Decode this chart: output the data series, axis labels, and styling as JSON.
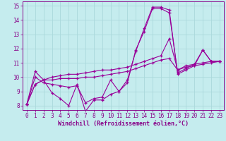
{
  "xlabel": "Windchill (Refroidissement éolien,°C)",
  "background_color": "#c5ecee",
  "grid_color": "#aad8dc",
  "line_color": "#990099",
  "xlim": [
    -0.5,
    23.5
  ],
  "ylim": [
    7.7,
    15.3
  ],
  "yticks": [
    8,
    9,
    10,
    11,
    12,
    13,
    14,
    15
  ],
  "xticks": [
    0,
    1,
    2,
    3,
    4,
    5,
    6,
    7,
    8,
    9,
    10,
    11,
    12,
    13,
    14,
    15,
    16,
    17,
    18,
    19,
    20,
    21,
    22,
    23
  ],
  "series": [
    [
      8.1,
      10.4,
      9.8,
      8.9,
      8.5,
      8.0,
      9.5,
      7.6,
      8.4,
      8.4,
      8.8,
      9.0,
      9.8,
      11.8,
      13.4,
      14.9,
      14.9,
      14.7,
      10.2,
      10.5,
      10.8,
      11.9,
      11.1,
      11.1
    ],
    [
      8.1,
      9.5,
      9.8,
      10.0,
      10.1,
      10.2,
      10.2,
      10.3,
      10.4,
      10.5,
      10.5,
      10.6,
      10.7,
      10.9,
      11.1,
      11.3,
      11.5,
      12.7,
      10.5,
      10.8,
      10.9,
      11.0,
      11.1,
      11.1
    ],
    [
      8.1,
      9.5,
      9.8,
      9.8,
      9.9,
      9.9,
      9.9,
      10.0,
      10.0,
      10.1,
      10.2,
      10.3,
      10.4,
      10.6,
      10.8,
      11.0,
      11.2,
      11.3,
      10.5,
      10.7,
      10.8,
      10.9,
      11.0,
      11.1
    ],
    [
      8.1,
      10.0,
      9.6,
      9.5,
      9.4,
      9.3,
      9.4,
      8.2,
      8.5,
      8.6,
      9.8,
      9.0,
      9.6,
      11.9,
      13.2,
      14.8,
      14.8,
      14.5,
      10.3,
      10.6,
      10.9,
      11.9,
      11.1,
      11.1
    ]
  ],
  "tick_color": "#880088",
  "spine_color": "#880088",
  "xlabel_fontsize": 6.0,
  "tick_fontsize": 5.5
}
